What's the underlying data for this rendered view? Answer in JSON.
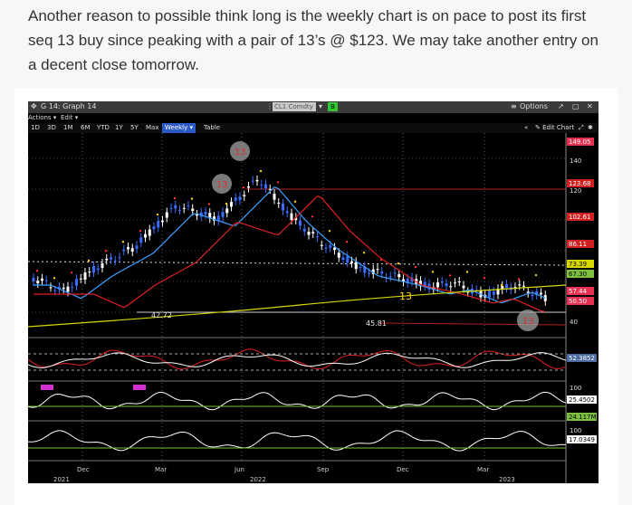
{
  "post": {
    "text": "Another reason to possible think long is the weekly chart is on pace to post its first seq 13 buy since peaking with a pair of 13’s @ $123. We may take another entry on a decent close tomorrow."
  },
  "terminal": {
    "title": "G 14: Graph 14",
    "ticker": "CL1 Comdty",
    "ticker_badge": "B",
    "options_label": "Options",
    "menu": {
      "actions": "Actions",
      "edit": "Edit",
      "edit_chart": "Edit Chart"
    },
    "ranges": [
      "1D",
      "3D",
      "1M",
      "6M",
      "YTD",
      "1Y",
      "5Y",
      "Max"
    ],
    "active_range": "Weekly",
    "table_label": "Table"
  },
  "chart_data": {
    "type": "line",
    "x_tick_labels": [
      "Dec",
      "Mar",
      "Jun",
      "Sep",
      "Dec",
      "Mar"
    ],
    "year_labels": [
      "2021",
      "2022",
      "2023"
    ],
    "y_ticks": [
      "140",
      "120",
      "40"
    ],
    "price_tags": [
      "149.05",
      "123.68",
      "102.61",
      "86.11",
      "73.39",
      "67.30",
      "57.44",
      "50.50"
    ],
    "annotations": [
      "42.72",
      "45.81",
      "13",
      "13",
      "13",
      "13"
    ],
    "indicator_values": [
      "52.3852",
      "25.4502",
      "24.117M",
      "17.0349"
    ],
    "indicator_ticks": [
      "100",
      "100"
    ],
    "colors": {
      "candle_up": "#ffffff",
      "candle_down": "#3a6cff",
      "ma_fast": "#3aa0ff",
      "ma_mid": "#e02020",
      "ma_slow": "#d8d800",
      "buy_setup": "#ffd000",
      "sell_setup": "#ff3030"
    }
  }
}
